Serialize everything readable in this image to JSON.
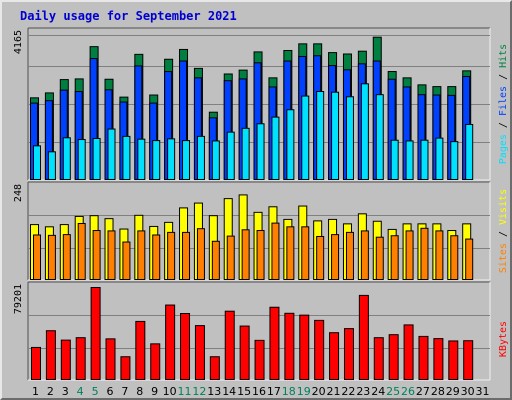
{
  "title": "Daily usage for September 2021",
  "colors": {
    "hits": "#008040",
    "files": "#0040ff",
    "pages": "#00e0ff",
    "visits": "#ffff00",
    "sites": "#ff8000",
    "kbytes": "#ff0000",
    "weekend_label": "#00805c",
    "weekday_label": "#000000",
    "panel_bg": "#c0c0c0",
    "grid": "#808080"
  },
  "chart_data": [
    {
      "type": "bar",
      "panel": "hits-files-pages",
      "ymax_label": "4165",
      "ylim": [
        0,
        4165
      ],
      "legend_labels": [
        "Pages",
        "Files",
        "Hits"
      ],
      "x": [
        "1",
        "2",
        "3",
        "4",
        "5",
        "6",
        "7",
        "8",
        "9",
        "10",
        "11",
        "12",
        "13",
        "14",
        "15",
        "16",
        "17",
        "18",
        "19",
        "20",
        "21",
        "22",
        "23",
        "24",
        "25",
        "26",
        "27",
        "28",
        "29",
        "30"
      ],
      "series": [
        {
          "name": "Hits",
          "values": [
            2330,
            2470,
            2850,
            2870,
            3790,
            2860,
            2350,
            3570,
            2410,
            3430,
            3710,
            3170,
            1920,
            3010,
            3120,
            3640,
            2900,
            3680,
            3870,
            3870,
            3620,
            3580,
            3660,
            4060,
            3080,
            2900,
            2700,
            2650,
            2650,
            3100
          ]
        },
        {
          "name": "Files",
          "values": [
            2180,
            2250,
            2550,
            2510,
            3450,
            2560,
            2210,
            3240,
            2180,
            3080,
            3380,
            2900,
            1760,
            2820,
            2870,
            3330,
            2640,
            3380,
            3510,
            3530,
            3250,
            3130,
            3300,
            3380,
            2860,
            2640,
            2420,
            2410,
            2400,
            2940
          ]
        },
        {
          "name": "Pages",
          "values": [
            960,
            790,
            1190,
            1140,
            1170,
            1440,
            1230,
            1150,
            1110,
            1160,
            1110,
            1230,
            1100,
            1350,
            1460,
            1590,
            1780,
            1990,
            2380,
            2510,
            2490,
            2360,
            2730,
            2420,
            1120,
            1100,
            1120,
            1180,
            1080,
            1570
          ]
        }
      ]
    },
    {
      "type": "bar",
      "panel": "visits-sites",
      "ymax_label": "248",
      "ylim": [
        0,
        248
      ],
      "legend_labels": [
        "Sites",
        "Visits"
      ],
      "x": [
        "1",
        "2",
        "3",
        "4",
        "5",
        "6",
        "7",
        "8",
        "9",
        "10",
        "11",
        "12",
        "13",
        "14",
        "15",
        "16",
        "17",
        "18",
        "19",
        "20",
        "21",
        "22",
        "23",
        "24",
        "25",
        "26",
        "27",
        "28",
        "29",
        "30"
      ],
      "series": [
        {
          "name": "Visits",
          "values": [
            148,
            142,
            148,
            170,
            172,
            164,
            136,
            173,
            143,
            154,
            193,
            206,
            172,
            218,
            228,
            181,
            196,
            162,
            198,
            158,
            162,
            150,
            177,
            157,
            135,
            150,
            150,
            150,
            132,
            150
          ]
        },
        {
          "name": "Sites",
          "values": [
            120,
            119,
            121,
            151,
            132,
            131,
            101,
            131,
            120,
            127,
            127,
            137,
            103,
            117,
            134,
            132,
            152,
            142,
            142,
            116,
            121,
            127,
            131,
            114,
            118,
            131,
            138,
            131,
            118,
            109
          ]
        }
      ]
    },
    {
      "type": "bar",
      "panel": "kbytes",
      "ymax_label": "79201",
      "ylim": [
        0,
        79201
      ],
      "legend_labels": [
        "KBytes"
      ],
      "x": [
        "1",
        "2",
        "3",
        "4",
        "5",
        "6",
        "7",
        "8",
        "9",
        "10",
        "11",
        "12",
        "13",
        "14",
        "15",
        "16",
        "17",
        "18",
        "19",
        "20",
        "21",
        "22",
        "23",
        "24",
        "25",
        "26",
        "27",
        "28",
        "29",
        "30"
      ],
      "series": [
        {
          "name": "KBytes",
          "values": [
            27600,
            42000,
            33900,
            36000,
            79200,
            35000,
            19600,
            50000,
            30700,
            64100,
            56800,
            46400,
            19600,
            58800,
            46000,
            33700,
            62200,
            57000,
            55400,
            50900,
            40300,
            43800,
            72400,
            36000,
            38600,
            47000,
            37100,
            35200,
            33200,
            33400
          ]
        }
      ]
    }
  ],
  "x_axis": {
    "labels": [
      "1",
      "2",
      "3",
      "4",
      "5",
      "6",
      "7",
      "8",
      "9",
      "10",
      "11",
      "12",
      "13",
      "14",
      "15",
      "16",
      "17",
      "18",
      "19",
      "20",
      "21",
      "22",
      "23",
      "24",
      "25",
      "26",
      "27",
      "28",
      "29",
      "30",
      "31"
    ],
    "weekend": [
      4,
      5,
      11,
      12,
      18,
      19,
      25,
      26
    ]
  }
}
